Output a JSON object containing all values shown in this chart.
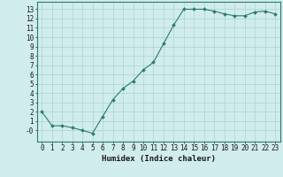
{
  "x": [
    0,
    1,
    2,
    3,
    4,
    5,
    6,
    7,
    8,
    9,
    10,
    11,
    12,
    13,
    14,
    15,
    16,
    17,
    18,
    19,
    20,
    21,
    22,
    23
  ],
  "y": [
    2,
    0.5,
    0.5,
    0.3,
    0.0,
    -0.3,
    1.5,
    3.3,
    4.5,
    5.3,
    6.5,
    7.3,
    9.3,
    11.3,
    13.0,
    13.0,
    13.0,
    12.8,
    12.5,
    12.3,
    12.3,
    12.7,
    12.8,
    12.5
  ],
  "line_color": "#2d7a6e",
  "marker": "D",
  "marker_size": 2.0,
  "bg_color": "#d0ecec",
  "grid_color": "#aad4d4",
  "xlabel": "Humidex (Indice chaleur)",
  "ylabel": "",
  "xlim": [
    -0.5,
    23.5
  ],
  "ylim": [
    -1.2,
    13.8
  ],
  "yticks": [
    0,
    1,
    2,
    3,
    4,
    5,
    6,
    7,
    8,
    9,
    10,
    11,
    12,
    13
  ],
  "ytick_labels": [
    "-0",
    "1",
    "2",
    "3",
    "4",
    "5",
    "6",
    "7",
    "8",
    "9",
    "10",
    "11",
    "12",
    "13"
  ],
  "xticks": [
    0,
    1,
    2,
    3,
    4,
    5,
    6,
    7,
    8,
    9,
    10,
    11,
    12,
    13,
    14,
    15,
    16,
    17,
    18,
    19,
    20,
    21,
    22,
    23
  ],
  "tick_fontsize": 5.5,
  "label_fontsize": 6.5
}
